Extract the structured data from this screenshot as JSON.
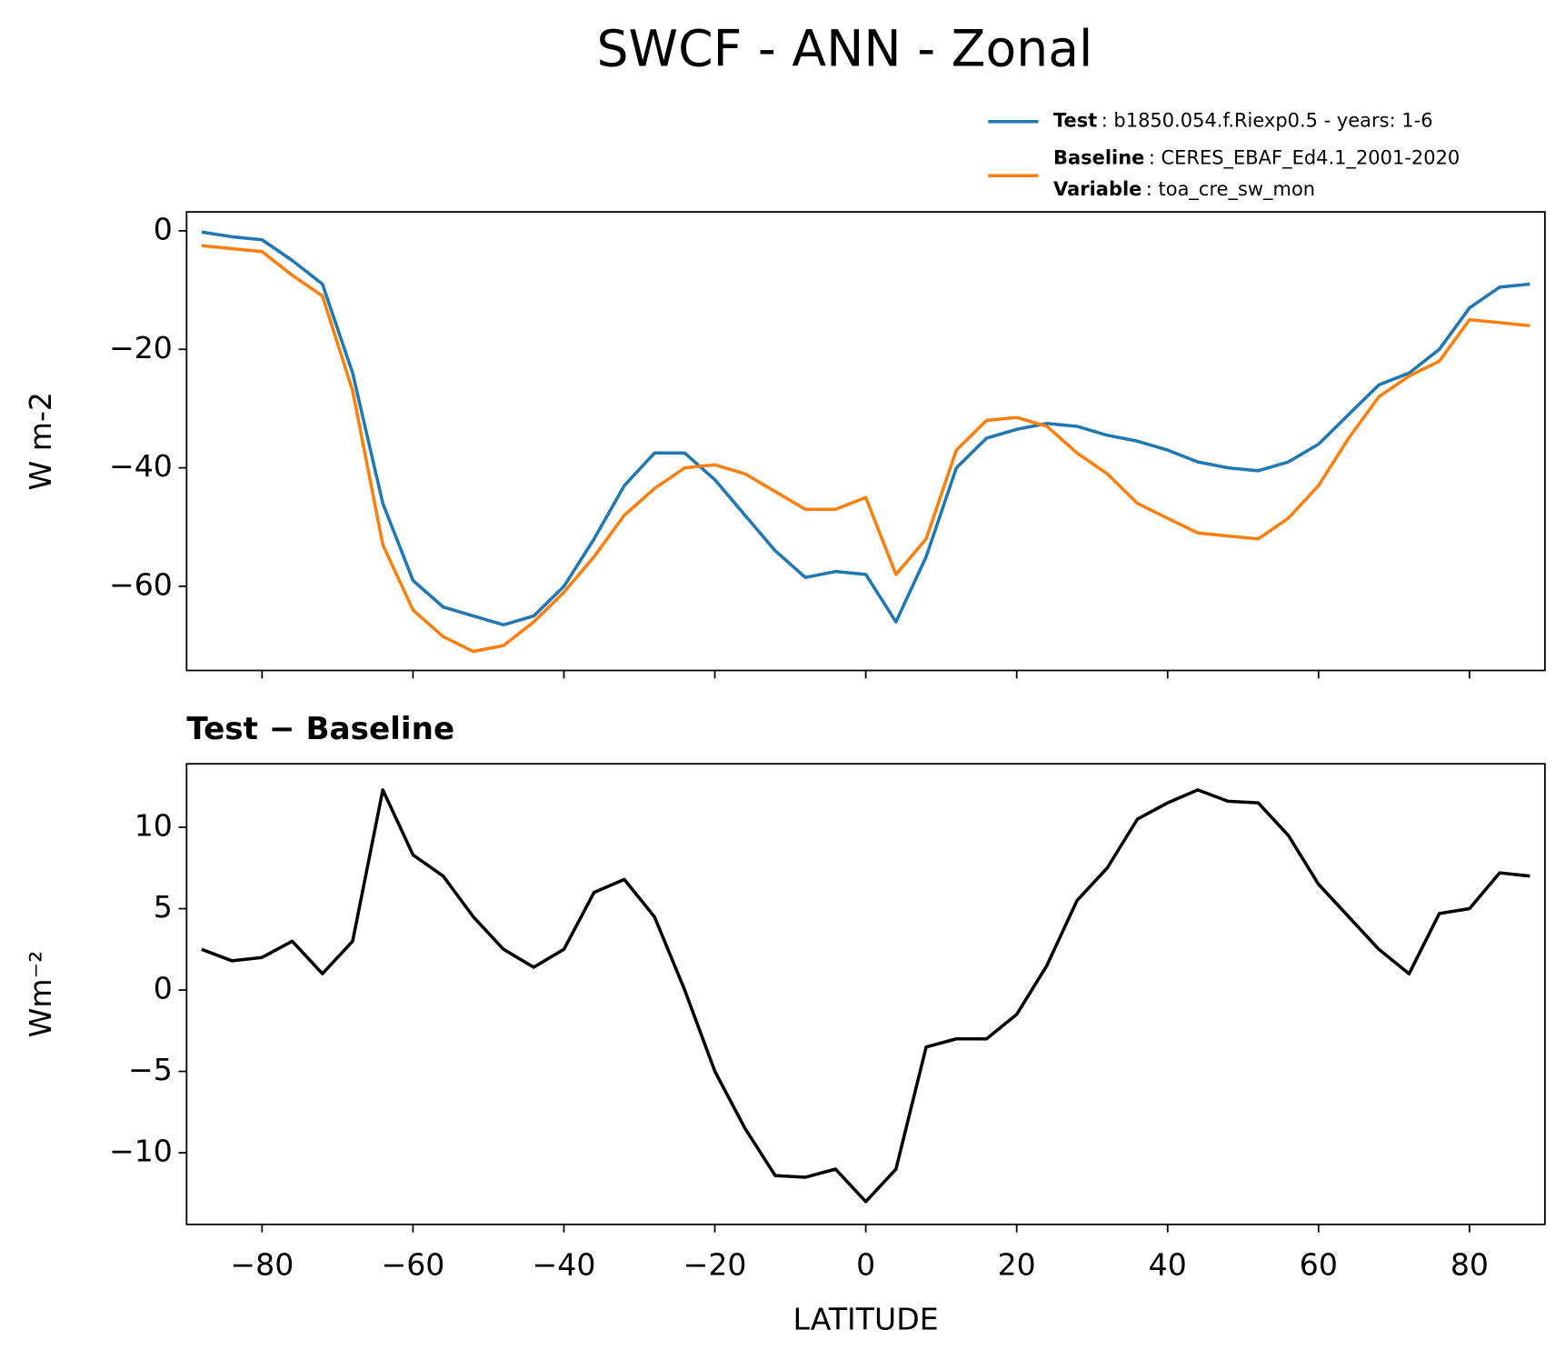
{
  "chart_data": [
    {
      "type": "line",
      "title": "SWCF - ANN - Zonal",
      "y_label": "W m-2",
      "x": [
        -88,
        -84,
        -80,
        -76,
        -72,
        -68,
        -64,
        -60,
        -56,
        -52,
        -48,
        -44,
        -40,
        -36,
        -32,
        -28,
        -24,
        -20,
        -16,
        -12,
        -8,
        -4,
        0,
        4,
        8,
        12,
        16,
        20,
        24,
        28,
        32,
        36,
        40,
        44,
        48,
        52,
        56,
        60,
        64,
        68,
        72,
        76,
        80,
        84,
        88
      ],
      "series": [
        {
          "name": "Test",
          "description": ": b1850.054.f.Riexp0.5 - years: 1-6",
          "color": "#1f77b4",
          "values": [
            -0.2,
            -1,
            -1.5,
            -5,
            -9,
            -24,
            -46,
            -59,
            -63.5,
            -65,
            -66.5,
            -65,
            -60,
            -52,
            -43,
            -37.5,
            -37.5,
            -42,
            -48,
            -54,
            -58.5,
            -57.5,
            -58,
            -66,
            -55,
            -40,
            -35,
            -33.5,
            -32.5,
            -33,
            -34.5,
            -35.5,
            -37,
            -39,
            -40,
            -40.5,
            -39,
            -36,
            -31,
            -26,
            -24,
            -20,
            -13,
            -9.5,
            -9
          ]
        },
        {
          "name": "Baseline",
          "description": ": CERES_EBAF_Ed4.1_2001-2020",
          "color": "#ff7f0e",
          "values": [
            -2.5,
            -3,
            -3.5,
            -7.5,
            -11,
            -27,
            -53,
            -64,
            -68.5,
            -71,
            -70,
            -66,
            -61,
            -55,
            -48,
            -43.5,
            -40,
            -39.5,
            -41,
            -44,
            -47,
            -47,
            -45,
            -58,
            -52,
            -37,
            -32,
            -31.5,
            -33,
            -37.5,
            -41,
            -46,
            -48.5,
            -51,
            -51.5,
            -52,
            -48.5,
            -43,
            -35,
            -28,
            -24.5,
            -22,
            -15,
            -15.5,
            -16
          ]
        }
      ],
      "legend_note": {
        "label": "Variable",
        "text": ": toa_cre_sw_mon"
      },
      "xlim": [
        -90,
        90
      ],
      "ylim": [
        -74.2,
        3.2
      ],
      "yticks": [
        {
          "value": -60,
          "label": "−60"
        },
        {
          "value": -40,
          "label": "−40"
        },
        {
          "value": -20,
          "label": "−20"
        },
        0
      ]
    },
    {
      "type": "line",
      "title": "Test − Baseline",
      "y_label": "Wm⁻²",
      "x_label": "LATITUDE",
      "color": "#000000",
      "x": [
        -88,
        -84,
        -80,
        -76,
        -72,
        -68,
        -64,
        -60,
        -56,
        -52,
        -48,
        -44,
        -40,
        -36,
        -32,
        -28,
        -24,
        -20,
        -16,
        -12,
        -8,
        -4,
        0,
        4,
        8,
        12,
        16,
        20,
        24,
        28,
        32,
        36,
        40,
        44,
        48,
        52,
        56,
        60,
        64,
        68,
        72,
        76,
        80,
        84,
        88
      ],
      "values": [
        2.5,
        1.8,
        2,
        3,
        1,
        3,
        12.3,
        8.3,
        7,
        4.5,
        2.5,
        1.4,
        2.5,
        6,
        6.8,
        4.5,
        0,
        -5,
        -8.5,
        -11.4,
        -11.5,
        -11,
        -13,
        -11,
        -3.5,
        -3,
        -3,
        -1.5,
        1.5,
        5.5,
        7.5,
        10.5,
        11.5,
        12.3,
        11.6,
        11.5,
        9.5,
        6.5,
        4.5,
        2.5,
        1,
        4.7,
        5,
        7.2,
        7
      ],
      "xlim": [
        -90,
        90
      ],
      "ylim": [
        -14.4,
        13.9
      ],
      "xticks": [
        {
          "value": -80,
          "label": "−80"
        },
        {
          "value": -60,
          "label": "−60"
        },
        {
          "value": -40,
          "label": "−40"
        },
        {
          "value": -20,
          "label": "−20"
        },
        0,
        20,
        40,
        60,
        80
      ],
      "yticks": [
        {
          "value": -10,
          "label": "−10"
        },
        {
          "value": -5,
          "label": "−5"
        },
        0,
        5,
        10
      ]
    }
  ]
}
